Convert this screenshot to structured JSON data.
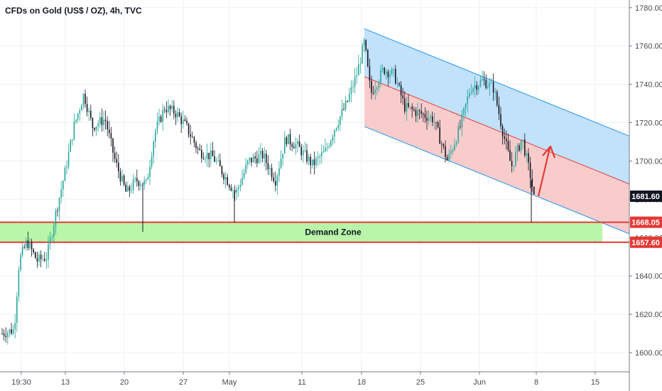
{
  "chart_data": {
    "type": "candlestick",
    "title": "CFDs on Gold (US$ / OZ), 4h, TVC",
    "y_axis": {
      "ticks": [
        1600,
        1620,
        1640,
        1660,
        1680,
        1700,
        1720,
        1740,
        1760,
        1780
      ],
      "tick_labels": [
        "1600.00",
        "1620.00",
        "1640.00",
        "1660.00",
        "1680.00",
        "1700.00",
        "1720.00",
        "1740.00",
        "1760.00",
        "1780.00"
      ],
      "ylim": [
        1590,
        1784
      ]
    },
    "x_axis": {
      "tick_labels": [
        "19:30",
        "13",
        "20",
        "27",
        "May",
        "11",
        "18",
        "25",
        "Jun",
        "8",
        "15"
      ]
    },
    "grid": true,
    "current_price": 1681.6,
    "current_price_label": "1681.60",
    "levels": [
      {
        "name": "demand-top",
        "value": 1668.05,
        "label": "1668.05",
        "color": "#e53935"
      },
      {
        "name": "demand-bottom",
        "value": 1657.6,
        "label": "1657.60",
        "color": "#e53935"
      }
    ],
    "demand_zone": {
      "label": "Demand Zone",
      "low": 1657.6,
      "high": 1668.05,
      "fill": "#b9f6a9"
    },
    "channel": {
      "upper_fill": "#bbdefb",
      "lower_fill": "#f8c6c6",
      "line_color": "#2196f3",
      "mid_line_color": "#e53935",
      "start_upper": 1769,
      "end_upper": 1713,
      "start_mid": 1744,
      "end_mid": 1688,
      "start_lower": 1718,
      "end_lower": 1662
    },
    "annotation": {
      "type": "arrow",
      "direction": "up",
      "color": "#e53935"
    },
    "colors": {
      "up": "#26a69a",
      "down": "#131722",
      "grid": "#eef0f3",
      "axis_text": "#4a4a4a"
    }
  },
  "labels": {
    "title": "CFDs on Gold (US$ / OZ), 4h, TVC",
    "demand_zone": "Demand Zone"
  }
}
